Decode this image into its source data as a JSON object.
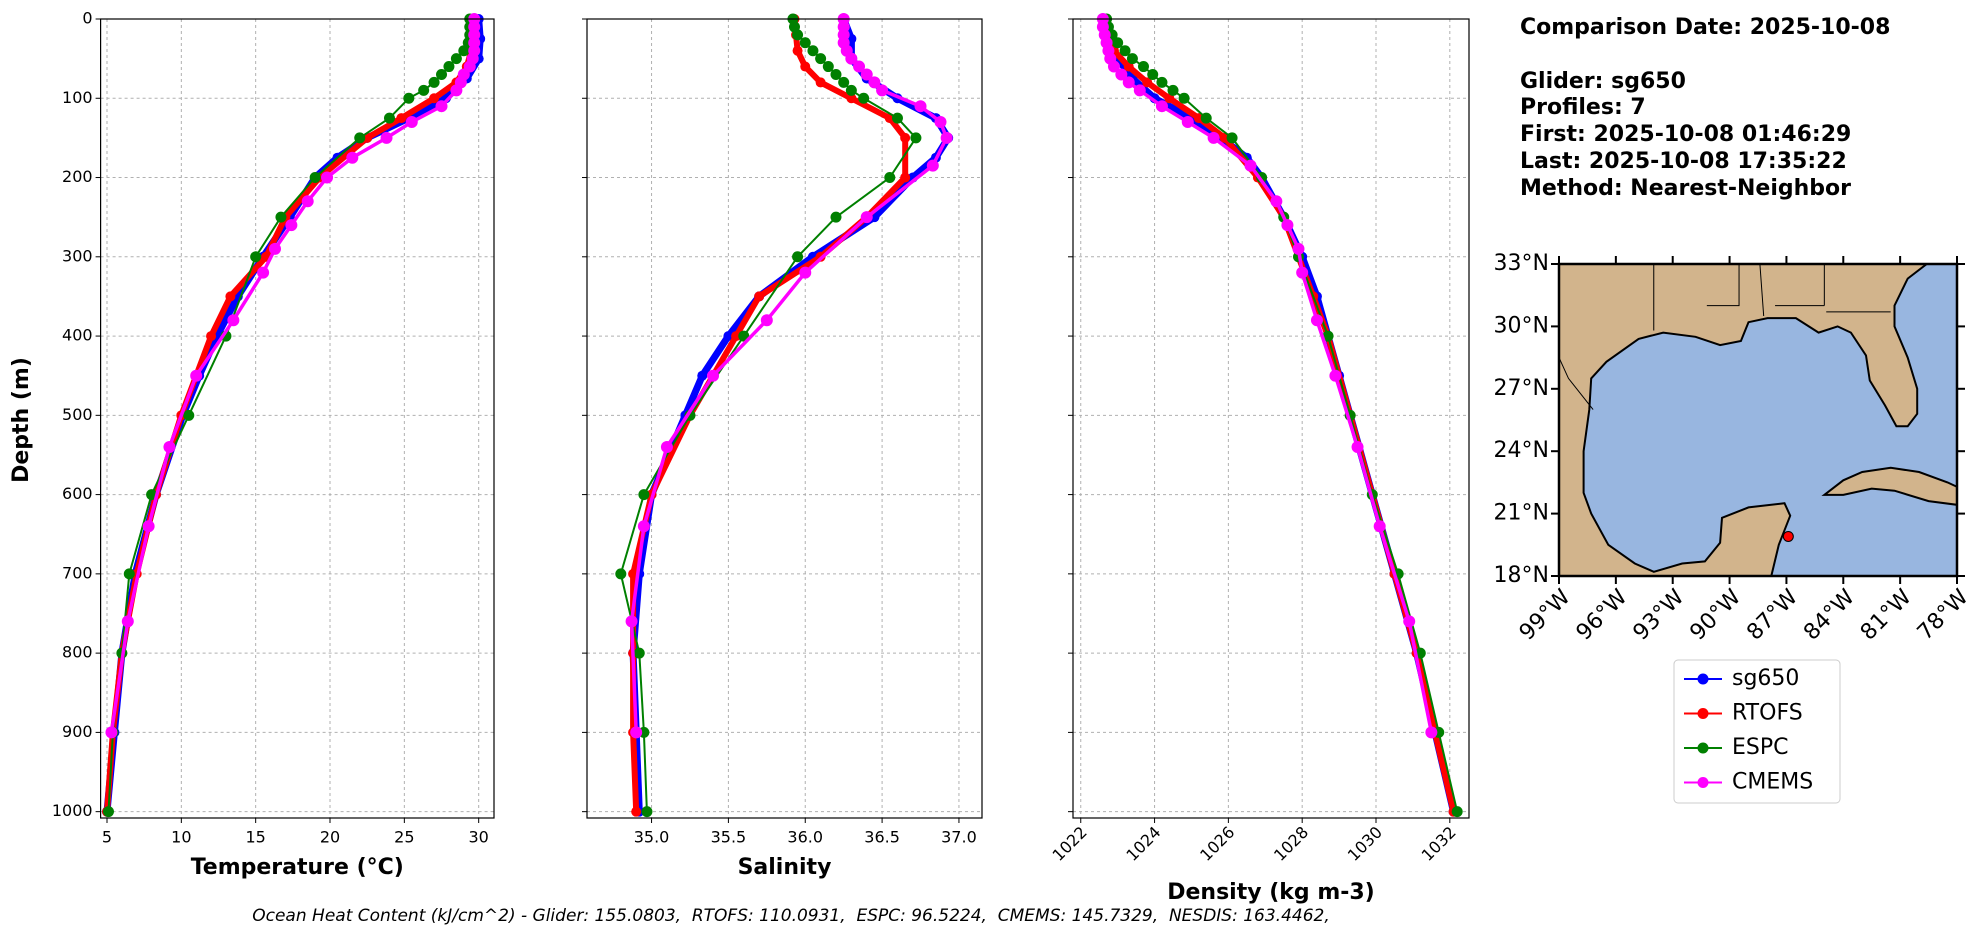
{
  "chart_data": [
    {
      "type": "line",
      "xlabel": "Temperature (°C)",
      "ylabel": "Depth (m)",
      "grid": true,
      "xlim": [
        4.57,
        31.03
      ],
      "xticks": [
        5,
        10,
        15,
        20,
        25,
        30
      ],
      "ylim": [
        1008,
        0
      ],
      "yticks": [
        0,
        100,
        200,
        300,
        400,
        500,
        600,
        700,
        800,
        900,
        1000
      ],
      "series": [
        {
          "name": "sg650",
          "color": "#0000ff",
          "x": [
            30.0,
            30.1,
            30.0,
            29.2,
            27.8,
            25.3,
            22.5,
            20.5,
            19.0,
            17.3,
            15.5,
            13.8,
            12.4,
            11.2,
            10.1,
            8.3,
            6.9,
            6.0,
            5.5,
            5.0
          ],
          "y": [
            0,
            25,
            50,
            75,
            100,
            125,
            150,
            175,
            200,
            250,
            300,
            350,
            400,
            450,
            500,
            600,
            700,
            800,
            900,
            1000
          ]
        },
        {
          "name": "RTOFS",
          "color": "#ff0000",
          "x": [
            29.5,
            29.6,
            29.5,
            29.2,
            28.5,
            27.0,
            24.8,
            22.5,
            19.3,
            17.0,
            15.7,
            13.3,
            12.0,
            10.0,
            8.3,
            7.0,
            6.0,
            5.4,
            5.0
          ],
          "y": [
            0,
            20,
            40,
            60,
            80,
            100,
            125,
            150,
            200,
            250,
            300,
            350,
            400,
            500,
            600,
            700,
            800,
            900,
            1000
          ]
        },
        {
          "name": "ESPC",
          "color": "#008000",
          "x": [
            29.4,
            29.4,
            29.4,
            29.3,
            29.0,
            28.5,
            28.0,
            27.5,
            27.0,
            26.3,
            25.3,
            24.0,
            22.0,
            19.0,
            16.7,
            15.0,
            13.0,
            10.5,
            8.0,
            6.5,
            6.0,
            5.4,
            5.1
          ],
          "y": [
            0,
            10,
            20,
            30,
            40,
            50,
            60,
            70,
            80,
            90,
            100,
            125,
            150,
            200,
            250,
            300,
            400,
            500,
            600,
            700,
            800,
            900,
            1000
          ]
        },
        {
          "name": "CMEMS",
          "color": "#ff00ff",
          "x": [
            29.7,
            29.7,
            29.7,
            29.7,
            29.7,
            29.6,
            29.4,
            29.0,
            28.8,
            28.5,
            27.5,
            25.5,
            23.8,
            21.5,
            19.8,
            18.5,
            17.4,
            16.3,
            15.5,
            13.5,
            11.0,
            9.2,
            7.8,
            6.4,
            5.3
          ],
          "y": [
            0,
            10,
            20,
            30,
            40,
            50,
            60,
            70,
            80,
            90,
            110,
            130,
            150,
            175,
            200,
            230,
            260,
            290,
            320,
            380,
            450,
            540,
            640,
            760,
            900
          ]
        }
      ]
    },
    {
      "type": "line",
      "xlabel": "Salinity",
      "grid": true,
      "xlim": [
        34.58,
        37.15
      ],
      "xticks": [
        {
          "value": 35,
          "label": "35.0"
        },
        35.5,
        {
          "value": 36,
          "label": "36.0"
        },
        36.5,
        {
          "value": 37,
          "label": "37.0"
        }
      ],
      "ylim": [
        1008,
        0
      ],
      "yticks": [
        0,
        100,
        200,
        300,
        400,
        500,
        600,
        700,
        800,
        900,
        1000
      ],
      "series": [
        {
          "name": "sg650",
          "color": "#0000ff",
          "x": [
            36.25,
            36.3,
            36.3,
            36.4,
            36.6,
            36.85,
            36.93,
            36.85,
            36.7,
            36.45,
            36.05,
            35.7,
            35.5,
            35.33,
            35.22,
            35.0,
            34.92,
            34.88,
            34.9,
            34.92
          ],
          "y": [
            0,
            25,
            50,
            75,
            100,
            125,
            150,
            175,
            200,
            250,
            300,
            350,
            400,
            450,
            500,
            600,
            700,
            800,
            900,
            1000
          ]
        },
        {
          "name": "RTOFS",
          "color": "#ff0000",
          "x": [
            35.93,
            35.94,
            35.95,
            36.0,
            36.1,
            36.3,
            36.55,
            36.65,
            36.65,
            36.4,
            36.1,
            35.7,
            35.55,
            35.25,
            35.0,
            34.88,
            34.88,
            34.88,
            34.9
          ],
          "y": [
            0,
            20,
            40,
            60,
            80,
            100,
            125,
            150,
            200,
            250,
            300,
            350,
            400,
            500,
            600,
            700,
            800,
            900,
            1000
          ]
        },
        {
          "name": "ESPC",
          "color": "#008000",
          "x": [
            35.92,
            35.93,
            35.95,
            36.0,
            36.05,
            36.1,
            36.15,
            36.2,
            36.25,
            36.3,
            36.38,
            36.6,
            36.72,
            36.55,
            36.2,
            35.95,
            35.6,
            35.25,
            34.95,
            34.8,
            34.92,
            34.95,
            34.97
          ],
          "y": [
            0,
            10,
            20,
            30,
            40,
            50,
            60,
            70,
            80,
            90,
            100,
            125,
            150,
            200,
            250,
            300,
            400,
            500,
            600,
            700,
            800,
            900,
            1000
          ]
        },
        {
          "name": "CMEMS",
          "color": "#ff00ff",
          "x": [
            36.25,
            36.25,
            36.25,
            36.25,
            36.27,
            36.3,
            36.35,
            36.4,
            36.45,
            36.5,
            36.75,
            36.88,
            36.92,
            36.83,
            36.4,
            36.0,
            35.75,
            35.4,
            35.1,
            34.95,
            34.87,
            34.9
          ],
          "y": [
            0,
            10,
            20,
            30,
            40,
            50,
            60,
            70,
            80,
            90,
            110,
            130,
            150,
            185,
            250,
            320,
            380,
            450,
            540,
            640,
            760,
            900
          ]
        }
      ]
    },
    {
      "type": "line",
      "xlabel": "Density (kg m-3)",
      "grid": true,
      "xlim": [
        1021.79,
        1032.52
      ],
      "xticks": [
        1022,
        1024,
        1026,
        1028,
        1030,
        1032
      ],
      "ylim": [
        1008,
        0
      ],
      "yticks": [
        0,
        100,
        200,
        300,
        400,
        500,
        600,
        700,
        800,
        900,
        1000
      ],
      "series": [
        {
          "name": "sg650",
          "color": "#0000ff",
          "x": [
            1022.7,
            1022.75,
            1023.0,
            1023.4,
            1024.0,
            1025.0,
            1025.8,
            1026.5,
            1026.9,
            1027.5,
            1028.0,
            1028.4,
            1028.7,
            1029.0,
            1029.3,
            1029.9,
            1030.5,
            1031.1,
            1031.6,
            1032.1
          ],
          "y": [
            0,
            25,
            50,
            75,
            100,
            125,
            150,
            175,
            200,
            250,
            300,
            350,
            400,
            450,
            500,
            600,
            700,
            800,
            900,
            1000
          ]
        },
        {
          "name": "RTOFS",
          "color": "#ff0000",
          "x": [
            1022.7,
            1022.75,
            1022.9,
            1023.3,
            1023.8,
            1024.4,
            1025.2,
            1025.9,
            1026.8,
            1027.5,
            1027.9,
            1028.3,
            1028.7,
            1029.3,
            1029.9,
            1030.5,
            1031.1,
            1031.6,
            1032.1
          ],
          "y": [
            0,
            20,
            40,
            60,
            80,
            100,
            125,
            150,
            200,
            250,
            300,
            350,
            400,
            500,
            600,
            700,
            800,
            900,
            1000
          ]
        },
        {
          "name": "ESPC",
          "color": "#008000",
          "x": [
            1022.7,
            1022.75,
            1022.85,
            1023.0,
            1023.2,
            1023.4,
            1023.7,
            1023.95,
            1024.2,
            1024.5,
            1024.8,
            1025.4,
            1026.1,
            1026.9,
            1027.5,
            1027.9,
            1028.7,
            1029.3,
            1029.9,
            1030.6,
            1031.2,
            1031.7,
            1032.2
          ],
          "y": [
            0,
            10,
            20,
            30,
            40,
            50,
            60,
            70,
            80,
            90,
            100,
            125,
            150,
            200,
            250,
            300,
            400,
            500,
            600,
            700,
            800,
            900,
            1000
          ]
        },
        {
          "name": "CMEMS",
          "color": "#ff00ff",
          "x": [
            1022.6,
            1022.6,
            1022.65,
            1022.7,
            1022.75,
            1022.8,
            1022.9,
            1023.1,
            1023.3,
            1023.6,
            1024.2,
            1024.9,
            1025.6,
            1026.6,
            1027.3,
            1027.6,
            1027.9,
            1028.0,
            1028.4,
            1028.9,
            1029.5,
            1030.1,
            1030.9,
            1031.5
          ],
          "y": [
            0,
            10,
            20,
            30,
            40,
            50,
            60,
            70,
            80,
            90,
            110,
            130,
            150,
            185,
            230,
            260,
            290,
            320,
            380,
            450,
            540,
            640,
            760,
            900
          ]
        }
      ]
    },
    {
      "type": "map",
      "xlim": [
        -99,
        -78
      ],
      "xticks": [
        {
          "value": -99,
          "label": "99°W"
        },
        {
          "value": -96,
          "label": "96°W"
        },
        {
          "value": -93,
          "label": "93°W"
        },
        {
          "value": -90,
          "label": "90°W"
        },
        {
          "value": -87,
          "label": "87°W"
        },
        {
          "value": -84,
          "label": "84°W"
        },
        {
          "value": -81,
          "label": "81°W"
        },
        {
          "value": -78,
          "label": "78°W"
        }
      ],
      "ylim": [
        18,
        33
      ],
      "yticks": [
        {
          "value": 18,
          "label": "18°N"
        },
        {
          "value": 21,
          "label": "21°N"
        },
        {
          "value": 24,
          "label": "24°N"
        },
        {
          "value": 27,
          "label": "27°N"
        },
        {
          "value": 30,
          "label": "30°N"
        },
        {
          "value": 33,
          "label": "33°N"
        }
      ],
      "series": [
        {
          "color": "#ff0000",
          "x": [
            -86.9
          ],
          "y": [
            19.9
          ]
        }
      ]
    }
  ],
  "info": [
    "Comparison Date: 2025-10-08",
    "Glider: sg650",
    "Profiles: 7",
    "First: 2025-10-08 01:46:29",
    "Last: 2025-10-08 17:35:22",
    "Method: Nearest-Neighbor"
  ],
  "footer": "Ocean Heat Content (kJ/cm^2) - Glider: 155.0803,  RTOFS: 110.0931,  ESPC: 96.5224,  CMEMS: 145.7329,  NESDIS: 163.4462,"
}
